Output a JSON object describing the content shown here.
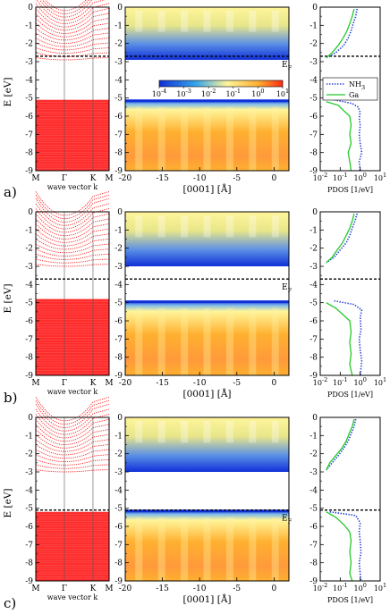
{
  "colors": {
    "band": "#ff1a1a",
    "fermi": "#000000",
    "nh3": "#1f3fd6",
    "ga": "#22c92a",
    "cmap": [
      "#ffffff",
      "#1030d8",
      "#36a6ea",
      "#fff59a",
      "#ffb030",
      "#ff2a10"
    ]
  },
  "labels": {
    "ylabel": "E [eV]",
    "band_xlabel": "wave vector k",
    "ldos_xlabel": "[0001] [Å]",
    "pdos_xlabel": "PDOS [1/eV]",
    "fermi": "E",
    "fermi_sub": "F",
    "kpoints": [
      "M",
      "Γ",
      "K",
      "M"
    ],
    "legend": [
      {
        "text": "NH",
        "sub": "3"
      },
      {
        "text": "Ga",
        "sub": ""
      }
    ],
    "colorbar_ticks": [
      {
        "base": "10",
        "exp": "-4"
      },
      {
        "base": "10",
        "exp": "-3"
      },
      {
        "base": "10",
        "exp": "-2"
      },
      {
        "base": "10",
        "exp": "-1"
      },
      {
        "base": "10",
        "exp": "0"
      },
      {
        "base": "10",
        "exp": "1"
      }
    ],
    "pdos_ticks": [
      {
        "base": "10",
        "exp": "-2"
      },
      {
        "base": "10",
        "exp": "-1"
      },
      {
        "base": "10",
        "exp": "0"
      },
      {
        "base": "10",
        "exp": "1"
      }
    ]
  },
  "chart_data": [
    {
      "panel": "a)",
      "type": "line",
      "band_structure": {
        "kpath": [
          "M",
          "Γ",
          "K",
          "M"
        ],
        "ylim": [
          -9,
          0
        ],
        "fermi_level": -2.7,
        "conduction_band_min": -2.9,
        "valence_band_max": -5.1
      },
      "ldos_map": {
        "type": "heatmap",
        "x_ticks": [
          -20,
          -15,
          -10,
          -5,
          0
        ],
        "xlim": [
          -20,
          2
        ],
        "ylim": [
          -9,
          0
        ],
        "scale": "log",
        "colorbar_range": [
          0.0001,
          10
        ],
        "gap": [
          -5.1,
          -2.9
        ]
      },
      "pdos": {
        "xscale": "log",
        "xlim": [
          0.01,
          10
        ],
        "ylim": [
          -9,
          0
        ],
        "series": [
          {
            "name": "NH3",
            "style": "dotted",
            "points": [
              [
                0.7,
                -0.1
              ],
              [
                0.6,
                -0.5
              ],
              [
                0.45,
                -0.9
              ],
              [
                0.35,
                -1.3
              ],
              [
                0.25,
                -1.7
              ],
              [
                0.15,
                -2.1
              ],
              [
                0.06,
                -2.5
              ],
              [
                0.03,
                -2.7
              ]
            ]
          },
          {
            "name": "NH3",
            "style": "dotted",
            "points": [
              [
                0.05,
                -5.1
              ],
              [
                0.4,
                -5.3
              ],
              [
                0.8,
                -5.5
              ],
              [
                1.0,
                -5.8
              ],
              [
                0.9,
                -6.1
              ],
              [
                1.0,
                -6.5
              ],
              [
                0.9,
                -7.0
              ],
              [
                1.0,
                -7.5
              ],
              [
                1.2,
                -8.0
              ],
              [
                0.9,
                -8.5
              ],
              [
                1.0,
                -9.0
              ]
            ]
          },
          {
            "name": "Ga",
            "style": "solid",
            "points": [
              [
                0.5,
                -0.1
              ],
              [
                0.4,
                -0.5
              ],
              [
                0.3,
                -0.9
              ],
              [
                0.22,
                -1.3
              ],
              [
                0.14,
                -1.7
              ],
              [
                0.08,
                -2.1
              ],
              [
                0.04,
                -2.5
              ],
              [
                0.02,
                -2.8
              ]
            ]
          },
          {
            "name": "Ga",
            "style": "solid",
            "points": [
              [
                0.02,
                -5.2
              ],
              [
                0.08,
                -5.4
              ],
              [
                0.15,
                -5.7
              ],
              [
                0.3,
                -6.0
              ],
              [
                0.35,
                -6.5
              ],
              [
                0.3,
                -7.0
              ],
              [
                0.35,
                -7.5
              ],
              [
                0.25,
                -8.0
              ],
              [
                0.3,
                -8.5
              ],
              [
                0.35,
                -9.0
              ]
            ]
          }
        ]
      }
    },
    {
      "panel": "b)",
      "type": "line",
      "band_structure": {
        "kpath": [
          "M",
          "Γ",
          "K",
          "M"
        ],
        "ylim": [
          -9,
          0
        ],
        "fermi_level": -3.7,
        "conduction_band_min": -3.0,
        "valence_band_max": -4.8
      },
      "ldos_map": {
        "type": "heatmap",
        "x_ticks": [
          -20,
          -15,
          -10,
          -5,
          0
        ],
        "xlim": [
          -20,
          2
        ],
        "ylim": [
          -9,
          0
        ],
        "scale": "log",
        "colorbar_range": [
          0.0001,
          10
        ],
        "gap": [
          -4.9,
          -3.0
        ]
      },
      "pdos": {
        "xscale": "log",
        "xlim": [
          0.01,
          10
        ],
        "ylim": [
          -9,
          0
        ],
        "series": [
          {
            "name": "NH3",
            "style": "dotted",
            "points": [
              [
                0.7,
                -0.1
              ],
              [
                0.55,
                -0.5
              ],
              [
                0.4,
                -0.9
              ],
              [
                0.3,
                -1.3
              ],
              [
                0.2,
                -1.7
              ],
              [
                0.1,
                -2.1
              ],
              [
                0.05,
                -2.5
              ],
              [
                0.02,
                -2.8
              ]
            ]
          },
          {
            "name": "NH3",
            "style": "dotted",
            "points": [
              [
                0.05,
                -4.9
              ],
              [
                0.5,
                -5.1
              ],
              [
                1.2,
                -5.4
              ],
              [
                1.0,
                -5.8
              ],
              [
                1.1,
                -6.5
              ],
              [
                0.9,
                -7.0
              ],
              [
                1.0,
                -7.6
              ],
              [
                1.2,
                -8.2
              ],
              [
                1.0,
                -9.0
              ]
            ]
          },
          {
            "name": "Ga",
            "style": "solid",
            "points": [
              [
                0.5,
                -0.1
              ],
              [
                0.4,
                -0.5
              ],
              [
                0.3,
                -0.9
              ],
              [
                0.2,
                -1.3
              ],
              [
                0.13,
                -1.7
              ],
              [
                0.07,
                -2.1
              ],
              [
                0.04,
                -2.5
              ],
              [
                0.02,
                -2.8
              ]
            ]
          },
          {
            "name": "Ga",
            "style": "solid",
            "points": [
              [
                0.02,
                -5.0
              ],
              [
                0.06,
                -5.3
              ],
              [
                0.15,
                -5.7
              ],
              [
                0.3,
                -6.0
              ],
              [
                0.35,
                -6.6
              ],
              [
                0.3,
                -7.2
              ],
              [
                0.35,
                -7.8
              ],
              [
                0.3,
                -8.4
              ],
              [
                0.4,
                -9.0
              ]
            ]
          }
        ]
      }
    },
    {
      "panel": "c)",
      "type": "line",
      "band_structure": {
        "kpath": [
          "M",
          "Γ",
          "K",
          "M"
        ],
        "ylim": [
          -9,
          0
        ],
        "fermi_level": -5.1,
        "conduction_band_min": -3.0,
        "valence_band_max": -5.2
      },
      "ldos_map": {
        "type": "heatmap",
        "x_ticks": [
          -20,
          -15,
          -10,
          -5,
          0
        ],
        "xlim": [
          -20,
          2
        ],
        "ylim": [
          -9,
          0
        ],
        "scale": "log",
        "colorbar_range": [
          0.0001,
          10
        ],
        "gap": [
          -5.1,
          -3.0
        ]
      },
      "pdos": {
        "xscale": "log",
        "xlim": [
          0.01,
          10
        ],
        "ylim": [
          -9,
          0
        ],
        "series": [
          {
            "name": "NH3",
            "style": "dotted",
            "points": [
              [
                0.6,
                -0.1
              ],
              [
                0.5,
                -0.5
              ],
              [
                0.35,
                -0.9
              ],
              [
                0.25,
                -1.3
              ],
              [
                0.15,
                -1.7
              ],
              [
                0.08,
                -2.1
              ],
              [
                0.04,
                -2.5
              ],
              [
                0.02,
                -2.9
              ]
            ]
          },
          {
            "name": "NH3",
            "style": "dotted",
            "points": [
              [
                0.03,
                -5.2
              ],
              [
                0.6,
                -5.4
              ],
              [
                1.0,
                -5.8
              ],
              [
                0.9,
                -6.3
              ],
              [
                1.0,
                -6.8
              ],
              [
                1.1,
                -7.4
              ],
              [
                0.9,
                -8.0
              ],
              [
                1.0,
                -8.6
              ],
              [
                1.1,
                -9.0
              ]
            ]
          },
          {
            "name": "Ga",
            "style": "solid",
            "points": [
              [
                0.5,
                -0.1
              ],
              [
                0.4,
                -0.5
              ],
              [
                0.28,
                -0.9
              ],
              [
                0.2,
                -1.3
              ],
              [
                0.12,
                -1.7
              ],
              [
                0.06,
                -2.1
              ],
              [
                0.03,
                -2.5
              ],
              [
                0.02,
                -2.9
              ]
            ]
          },
          {
            "name": "Ga",
            "style": "solid",
            "points": [
              [
                0.02,
                -5.2
              ],
              [
                0.06,
                -5.5
              ],
              [
                0.15,
                -5.9
              ],
              [
                0.3,
                -6.3
              ],
              [
                0.35,
                -6.8
              ],
              [
                0.3,
                -7.4
              ],
              [
                0.35,
                -8.0
              ],
              [
                0.3,
                -8.6
              ],
              [
                0.4,
                -9.0
              ]
            ]
          }
        ]
      }
    }
  ]
}
